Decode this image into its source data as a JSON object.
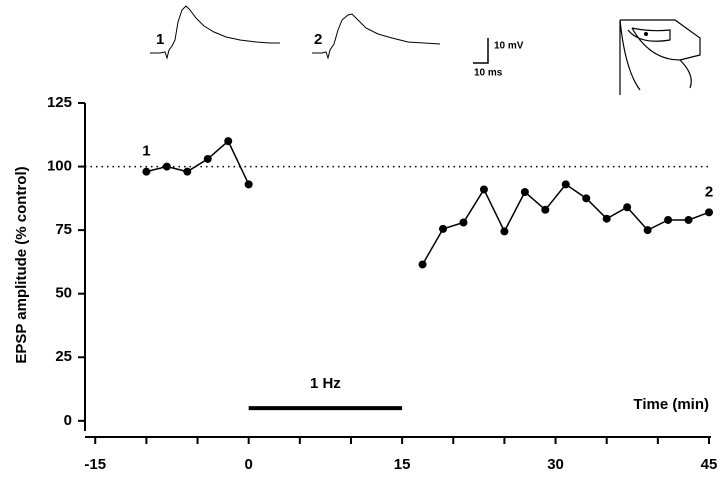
{
  "chart_data": {
    "type": "line",
    "y_label": "EPSP amplitude (% control)",
    "x_label": "Time (min)",
    "x": [
      -10,
      -8,
      -6,
      -4,
      -2,
      0,
      null,
      17,
      19,
      21,
      23,
      25,
      27,
      29,
      31,
      33,
      35,
      37,
      39,
      41,
      43,
      45
    ],
    "series": [
      {
        "color": "#000000",
        "values": [
          98,
          100,
          98,
          103,
          110,
          93,
          null,
          61.5,
          75.5,
          78,
          91,
          74.5,
          90,
          83,
          93,
          87.5,
          79.5,
          84,
          75,
          79,
          79,
          82
        ]
      }
    ],
    "xlim": [
      -16,
      45
    ],
    "ylim": [
      -4,
      125
    ],
    "xticks": [
      -15,
      0,
      15,
      30,
      45
    ],
    "xminorticks": [
      -10,
      -5,
      5,
      10,
      20,
      25,
      35,
      40
    ],
    "yticks": [
      0,
      25,
      50,
      75,
      100,
      125
    ],
    "reference_line": 100,
    "point_labels": [
      {
        "text": "1",
        "index": 0
      },
      {
        "text": "2",
        "index": 21
      }
    ],
    "stimulus": {
      "label": "1 Hz",
      "start": 0,
      "end": 15,
      "y": 5
    },
    "insets": {
      "trace_labels": [
        "1",
        "2"
      ],
      "scale_labels": [
        "10 mV",
        "10 ms"
      ]
    }
  }
}
